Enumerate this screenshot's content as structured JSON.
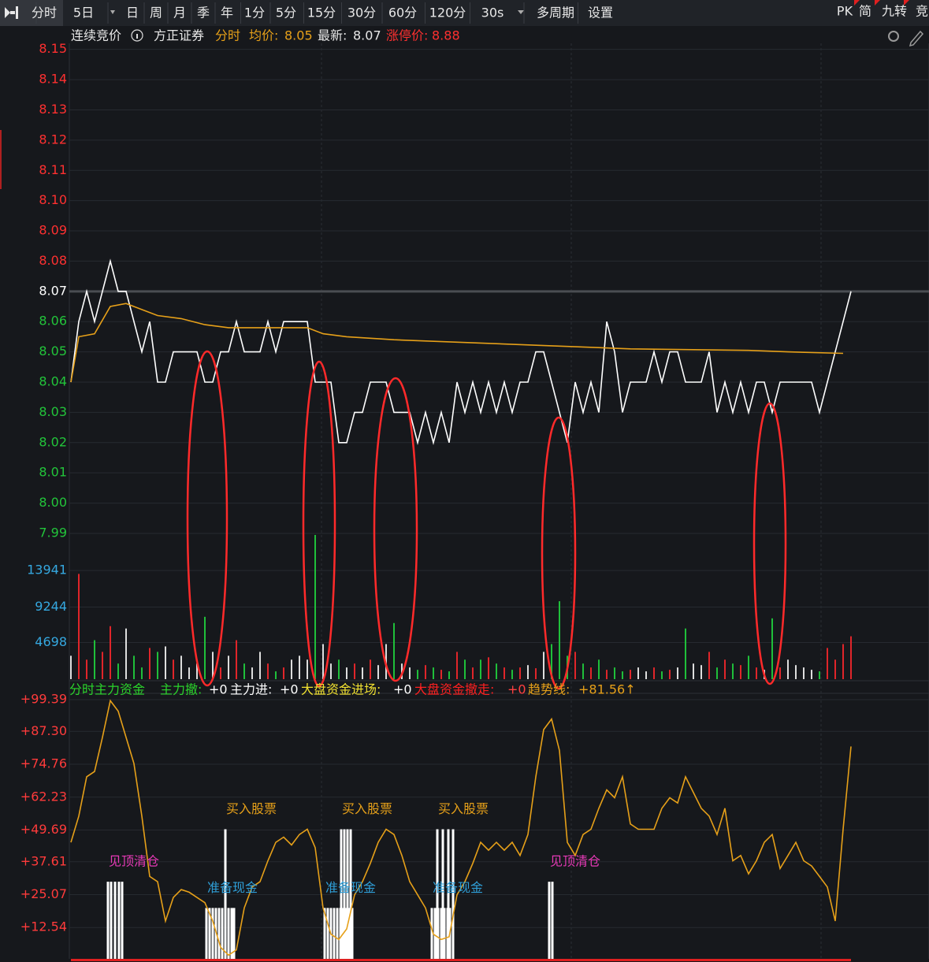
{
  "toolbar": {
    "tabs": [
      "分时",
      "5日",
      "日",
      "周",
      "月",
      "季",
      "年",
      "1分",
      "5分",
      "15分",
      "30分",
      "60分",
      "120分",
      "30s",
      "多周期",
      "设置"
    ],
    "right_tabs": [
      "PK",
      "简",
      "九转",
      "竞"
    ]
  },
  "info_bar": {
    "status": "连续竞价",
    "broker": "方正证券",
    "mode": "分时",
    "avg_label": "均价:",
    "avg": 8.05,
    "latest_label": "最新:",
    "latest": 8.07,
    "limit_label": "涨停价:",
    "limit": 8.88
  },
  "chart_data": [
    {
      "type": "line",
      "grid": true,
      "up_color": "#ff3030",
      "down_color": "#22c43a",
      "flat_color": "#ffffff",
      "ylim": [
        7.984,
        8.152
      ],
      "yticks": [
        8.15,
        8.14,
        8.13,
        8.12,
        8.11,
        {
          "value": 8.1,
          "label": "8.10"
        },
        8.09,
        8.08,
        8.07,
        8.06,
        8.05,
        8.04,
        8.03,
        8.02,
        8.01,
        {
          "value": 8,
          "label": "8.00"
        },
        7.99
      ],
      "series": [
        {
          "color": "#ffffff",
          "values": [
            8.04,
            8.06,
            8.07,
            8.06,
            8.07,
            8.08,
            8.07,
            8.07,
            8.06,
            8.05,
            8.06,
            8.04,
            8.04,
            8.05,
            8.05,
            8.05,
            8.05,
            8.04,
            8.04,
            8.05,
            8.05,
            8.06,
            8.05,
            8.05,
            8.05,
            8.06,
            8.05,
            8.06,
            8.06,
            8.06,
            8.06,
            8.04,
            8.04,
            8.04,
            8.02,
            8.02,
            8.03,
            8.03,
            8.04,
            8.04,
            8.04,
            8.03,
            8.03,
            8.03,
            8.02,
            8.03,
            8.02,
            8.03,
            8.02,
            8.04,
            8.03,
            8.04,
            8.03,
            8.04,
            8.03,
            8.04,
            8.03,
            8.04,
            8.04,
            8.05,
            8.05,
            8.04,
            8.03,
            8.02,
            8.04,
            8.03,
            8.04,
            8.03,
            8.06,
            8.05,
            8.03,
            8.04,
            8.04,
            8.04,
            8.05,
            8.04,
            8.05,
            8.05,
            8.04,
            8.04,
            8.04,
            8.05,
            8.03,
            8.04,
            8.03,
            8.04,
            8.03,
            8.04,
            8.04,
            8.03,
            8.04,
            8.04,
            8.04,
            8.04,
            8.04,
            8.03,
            8.04,
            8.05,
            8.06,
            8.07
          ]
        },
        {
          "color": "#e6a019",
          "x": [
            0,
            1,
            3,
            5,
            7,
            9,
            11,
            14,
            17,
            20,
            30,
            32,
            35,
            41,
            51,
            61,
            71,
            86,
            91,
            98
          ],
          "values": [
            8.04,
            8.055,
            8.056,
            8.065,
            8.066,
            8.064,
            8.062,
            8.061,
            8.059,
            8.058,
            8.058,
            8.056,
            8.055,
            8.054,
            8.053,
            8.052,
            8.051,
            8.0505,
            8.05,
            8.0495
          ]
        }
      ]
    },
    {
      "type": "bar",
      "tick_color": "#35a8e0",
      "up_color": "#e0252a",
      "down_color": "#1fbf3a",
      "flat_color": "#dddddd",
      "ylim": [
        0,
        18700
      ],
      "yticks": [
        4698,
        9244,
        13941
      ],
      "values": [
        3000,
        13500,
        2500,
        5000,
        3500,
        6800,
        2000,
        6500,
        3000,
        1500,
        4000,
        3500,
        4200,
        2500,
        3000,
        1500,
        2000,
        8000,
        3500,
        1500,
        3000,
        5000,
        2000,
        1500,
        3500,
        2000,
        1000,
        1500,
        2500,
        3000,
        2500,
        18500,
        4500,
        2000,
        2500,
        1500,
        2000,
        1500,
        2500,
        1800,
        4500,
        7200,
        2000,
        1500,
        1200,
        1800,
        1500,
        1200,
        1000,
        3500,
        2500,
        1500,
        2500,
        2800,
        2000,
        1500,
        1200,
        1500,
        1800,
        1400,
        3500,
        4500,
        10000,
        3000,
        3500,
        2000,
        1500,
        2500,
        1200,
        1500,
        1000,
        1200,
        1500,
        1000,
        1500,
        1000,
        1200,
        1500,
        6500,
        2000,
        1800,
        3500,
        1500,
        2500,
        2000,
        1800,
        3000,
        1500,
        1200,
        7800,
        1500,
        2500,
        1800,
        1500,
        1200,
        1000,
        4000,
        2500,
        4500,
        5500
      ]
    },
    {
      "type": "line",
      "title": "分时主力资金",
      "title_color": "#2bd42b",
      "tick_color": "#ff3b3b",
      "legend": [
        {
          "label": "主力撤:",
          "value": "+0",
          "color": "#2bd42b",
          "value_color": "#ffffff"
        },
        {
          "label": "主力进:",
          "value": "+0",
          "color": "#ffffff",
          "value_color": "#ffffff"
        },
        {
          "label": "大盘资金进场:",
          "value": "+0",
          "color": "#f0e030",
          "value_color": "#ffffff"
        },
        {
          "label": "大盘资金撤走:",
          "value": "+0",
          "color": "#ff2020",
          "value_color": "#ff4040"
        },
        {
          "label": "趋势线:",
          "value": "+81.56↑",
          "color": "#e6a019",
          "value_color": "#e6a019"
        }
      ],
      "ylim": [
        0,
        101.8
      ],
      "yticks": [
        {
          "value": 99.39,
          "label": "+99.39"
        },
        {
          "value": 87.3,
          "label": "+87.30"
        },
        {
          "value": 74.76,
          "label": "+74.76"
        },
        {
          "value": 62.23,
          "label": "+62.23"
        },
        {
          "value": 49.69,
          "label": "+49.69"
        },
        {
          "value": 37.61,
          "label": "+37.61"
        },
        {
          "value": 25.07,
          "label": "+25.07"
        },
        {
          "value": 12.54,
          "label": "+12.54"
        }
      ],
      "series": [
        {
          "color": "#e6a019",
          "values": [
            45,
            55,
            70,
            72,
            85,
            99,
            95,
            85,
            75,
            55,
            32,
            30,
            15,
            24,
            27,
            26,
            24,
            22,
            15,
            5,
            2,
            4,
            20,
            28,
            30,
            38,
            45,
            47,
            44,
            48,
            50,
            43,
            20,
            10,
            8,
            12,
            25,
            30,
            37,
            45,
            50,
            48,
            40,
            30,
            25,
            20,
            10,
            8,
            9,
            25,
            30,
            37,
            45,
            42,
            45,
            42,
            45,
            40,
            48,
            70,
            88,
            92,
            80,
            45,
            40,
            48,
            50,
            58,
            65,
            62,
            70,
            52,
            50,
            50,
            50,
            58,
            62,
            60,
            70,
            64,
            58,
            55,
            48,
            58,
            38,
            40,
            33,
            38,
            45,
            48,
            35,
            40,
            45,
            38,
            36,
            32,
            28,
            15,
            50,
            81.56
          ]
        }
      ],
      "signals": [
        {
          "label": "见顶清仓",
          "color": "#e83ab8",
          "x": [
            4.7,
            5.1,
            5.6,
            6.1,
            6.5
          ],
          "values": [
            30,
            30,
            30,
            30,
            30
          ]
        },
        {
          "label": "准备现金",
          "color": "#2f9fd8",
          "x": [
            17.2,
            17.6,
            18,
            18.4,
            18.8,
            19.2,
            19.6,
            20,
            20.4,
            20.7
          ],
          "values": [
            20,
            20,
            20,
            20,
            20,
            20,
            20,
            20,
            20,
            20
          ]
        },
        {
          "label": "买入股票",
          "color": "#e6a019",
          "x": [
            19.6
          ],
          "values": [
            50
          ]
        },
        {
          "label": "准备现金",
          "color": "#2f9fd8",
          "x": [
            32.2,
            32.6,
            33,
            33.4,
            33.8,
            34.2,
            34.6,
            35,
            35.4,
            35.7
          ],
          "values": [
            20,
            20,
            20,
            20,
            20,
            20,
            20,
            20,
            20,
            20
          ]
        },
        {
          "label": "买入股票",
          "color": "#e6a019",
          "x": [
            34.3,
            34.7,
            35.1,
            35.5
          ],
          "values": [
            50,
            50,
            50,
            50
          ]
        },
        {
          "label": "准备现金",
          "color": "#2f9fd8",
          "x": [
            45.8,
            46.2,
            46.6,
            47,
            47.4,
            47.8,
            48.1,
            48.5
          ],
          "values": [
            20,
            20,
            20,
            20,
            20,
            20,
            20,
            20
          ]
        },
        {
          "label": "买入股票",
          "color": "#e6a019",
          "x": [
            46.5,
            47.2,
            47.9,
            48.5
          ],
          "values": [
            50,
            50,
            50,
            50
          ]
        },
        {
          "label": "见顶清仓",
          "color": "#e83ab8",
          "x": [
            60.7,
            61.1
          ],
          "values": [
            30,
            30
          ]
        }
      ]
    }
  ]
}
